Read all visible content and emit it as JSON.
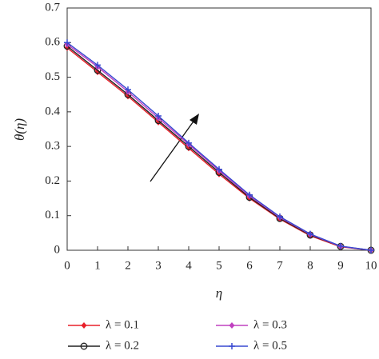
{
  "chart_data": {
    "type": "line",
    "x_label": "η",
    "y_label": "θ(η)",
    "x": [
      0,
      1,
      2,
      3,
      4,
      5,
      6,
      7,
      8,
      9,
      10
    ],
    "xlim": [
      0,
      10
    ],
    "xticks": [
      0,
      1,
      2,
      3,
      4,
      5,
      6,
      7,
      8,
      9,
      10
    ],
    "ylim": [
      0,
      0.7
    ],
    "yticks": [
      0,
      0.1,
      0.2,
      0.3,
      0.4,
      0.5,
      0.6,
      0.7
    ],
    "series": [
      {
        "name": "λ = 0.1",
        "color": "#e8202a",
        "marker": "diamond",
        "values": [
          0.585,
          0.515,
          0.445,
          0.37,
          0.295,
          0.22,
          0.15,
          0.09,
          0.042,
          0.01,
          0
        ]
      },
      {
        "name": "λ = 0.2",
        "color": "#222222",
        "marker": "circle",
        "values": [
          0.59,
          0.52,
          0.45,
          0.375,
          0.3,
          0.225,
          0.153,
          0.092,
          0.044,
          0.011,
          0
        ]
      },
      {
        "name": "λ = 0.3",
        "color": "#c040c0",
        "marker": "diamond",
        "values": [
          0.595,
          0.53,
          0.458,
          0.382,
          0.306,
          0.23,
          0.157,
          0.095,
          0.046,
          0.011,
          0
        ]
      },
      {
        "name": "λ = 0.5",
        "color": "#3848d0",
        "marker": "plus",
        "values": [
          0.6,
          0.535,
          0.464,
          0.388,
          0.31,
          0.234,
          0.16,
          0.097,
          0.047,
          0.012,
          0
        ]
      }
    ]
  }
}
